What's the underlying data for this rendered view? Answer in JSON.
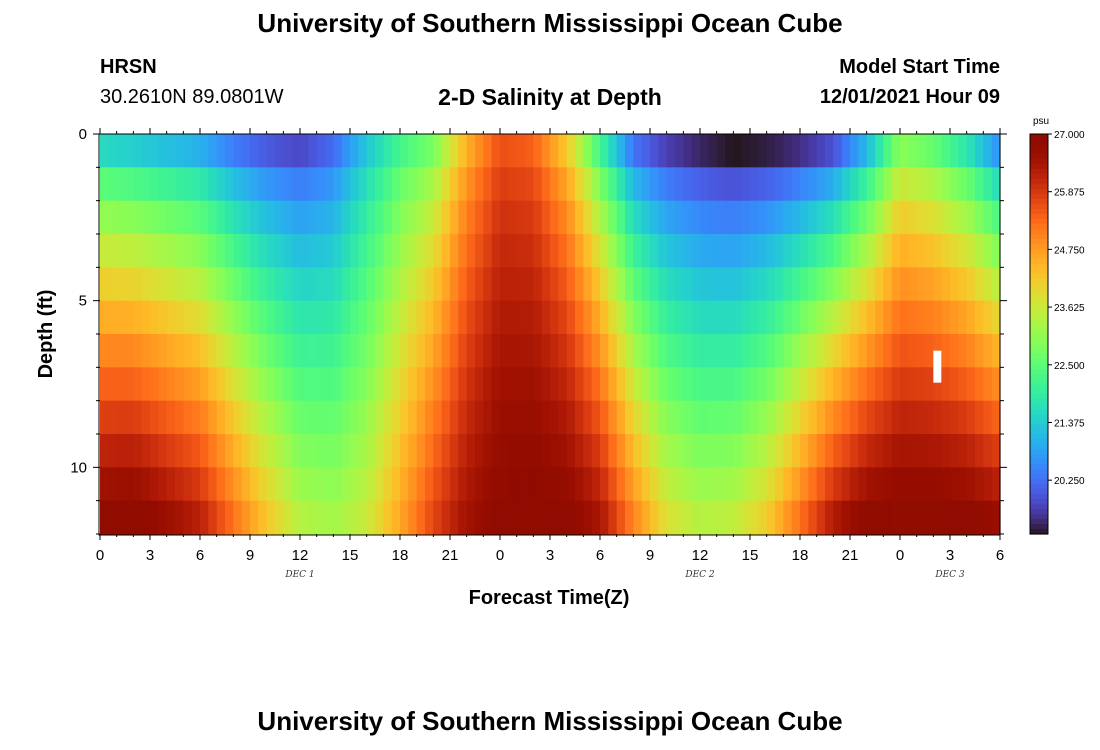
{
  "header": {
    "title": "University of Southern Mississippi Ocean Cube",
    "station": "HRSN",
    "coords": "30.2610N  89.0801W",
    "subtitle": "2-D Salinity at Depth",
    "model_start_label": "Model Start Time",
    "model_start_value": "12/01/2021 Hour 09"
  },
  "footer": {
    "title": "University of Southern Mississippi Ocean Cube"
  },
  "chart_data": {
    "type": "heatmap",
    "xlabel": "Forecast Time(Z)",
    "ylabel": "Depth (ft)",
    "x_tick_labels": [
      "0",
      "3",
      "6",
      "9",
      "12",
      "15",
      "18",
      "21",
      "0",
      "3",
      "6",
      "9",
      "12",
      "15",
      "18",
      "21",
      "0",
      "3",
      "6"
    ],
    "x_range_hours": [
      0,
      54
    ],
    "day_labels": [
      {
        "label": "DEC 1",
        "hour": 12
      },
      {
        "label": "DEC 2",
        "hour": 36
      },
      {
        "label": "DEC 3",
        "hour": 51
      }
    ],
    "y_tick_labels": [
      "0",
      "5",
      "10"
    ],
    "y_range_ft": [
      0,
      12
    ],
    "y_inverted": true,
    "depth_levels_ft": [
      0.5,
      1.5,
      2.5,
      3.5,
      4.5,
      5.5,
      6.5,
      7.5,
      8.5,
      9.5,
      10.5,
      11.5
    ],
    "time_step_hours": 0.5,
    "colorbar": {
      "unit": "psu",
      "tick_labels": [
        "27.000",
        "25.875",
        "24.750",
        "23.625",
        "22.500",
        "21.375",
        "20.250"
      ],
      "tick_values": [
        27.0,
        25.875,
        24.75,
        23.625,
        22.5,
        21.375,
        20.25
      ],
      "range": [
        19.2,
        27.0
      ],
      "colormap": "turbo"
    },
    "salinity_surface_psu_by_hour": [
      [
        0,
        21.6
      ],
      [
        2,
        21.4
      ],
      [
        4,
        21.2
      ],
      [
        6,
        21.0
      ],
      [
        8,
        20.4
      ],
      [
        10,
        20.0
      ],
      [
        12,
        19.8
      ],
      [
        14,
        20.2
      ],
      [
        16,
        21.3
      ],
      [
        18,
        22.2
      ],
      [
        20,
        22.8
      ],
      [
        22,
        24.5
      ],
      [
        24,
        25.6
      ],
      [
        26,
        25.4
      ],
      [
        28,
        24.2
      ],
      [
        30,
        22.2
      ],
      [
        32,
        20.3
      ],
      [
        34,
        19.7
      ],
      [
        36,
        19.4
      ],
      [
        38,
        19.2
      ],
      [
        40,
        19.3
      ],
      [
        42,
        19.5
      ],
      [
        44,
        19.9
      ],
      [
        46,
        21.1
      ],
      [
        48,
        23.0
      ],
      [
        50,
        22.6
      ],
      [
        52,
        21.8
      ],
      [
        54,
        20.6
      ]
    ],
    "salinity_bottom_psu_by_hour": [
      [
        0,
        26.9
      ],
      [
        2,
        27.0
      ],
      [
        4,
        26.6
      ],
      [
        6,
        26.2
      ],
      [
        8,
        25.2
      ],
      [
        10,
        24.2
      ],
      [
        12,
        23.4
      ],
      [
        14,
        23.2
      ],
      [
        16,
        23.6
      ],
      [
        18,
        24.6
      ],
      [
        20,
        25.7
      ],
      [
        22,
        26.5
      ],
      [
        24,
        26.9
      ],
      [
        26,
        27.0
      ],
      [
        28,
        26.9
      ],
      [
        30,
        26.4
      ],
      [
        32,
        25.0
      ],
      [
        34,
        23.8
      ],
      [
        36,
        23.4
      ],
      [
        38,
        23.5
      ],
      [
        40,
        24.1
      ],
      [
        42,
        25.2
      ],
      [
        44,
        26.3
      ],
      [
        46,
        26.9
      ],
      [
        48,
        27.0
      ],
      [
        50,
        27.0
      ],
      [
        52,
        26.9
      ],
      [
        54,
        26.6
      ]
    ]
  }
}
